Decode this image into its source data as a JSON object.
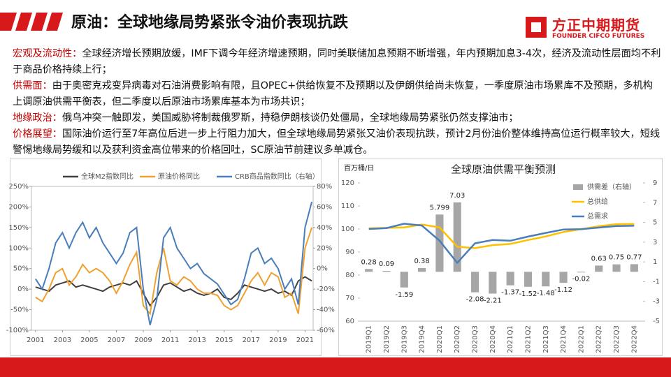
{
  "header": {
    "title": "原油：全球地缘局势紧张令油价表现抗跌",
    "logo_cn": "方正中期期货",
    "logo_en": "FOUNDER CIFCO FUTURES"
  },
  "sections": [
    {
      "label": "宏观及流动性：",
      "text": "全球经济增长预期放缓，IMF下调今年经济增速预期，同时美联储加息预期不断增强，年内预期加息3-4次，经济及流动性层面均不利于商品价格持续上行；"
    },
    {
      "label": "供需面：",
      "text": "由于奥密克戎变异病毒对石油消费影响有限，且OPEC+供给恢复不及预期以及伊朗供给尚未恢复，一季度原油市场累库不及预期，多机构上调原油供需平衡表，但二季度以后原油市场累库基本为市场共识；"
    },
    {
      "label": "地缘政治：",
      "text": "俄乌冲突一触即发，美国威胁将制裁俄罗斯，持稳伊朗核谈仍处僵局，全球地缘局势紧张仍然支撑油市；"
    },
    {
      "label": "价格展望：",
      "text": "国际油价运行至7年高位后进一步上行阻力加大，但全球地缘局势紧张又油价表现抗跌，预计2月份油价整体维持高位运行概率较大，短线警惕地缘局势缓和以及获利资金高位带来的价格回吐，SC原油节前建议多单减仓。"
    }
  ],
  "chart_data": [
    {
      "type": "line",
      "x": [
        2001,
        2001.5,
        2002,
        2002.5,
        2003,
        2003.5,
        2004,
        2004.5,
        2005,
        2005.5,
        2006,
        2006.5,
        2007,
        2007.5,
        2008,
        2008.5,
        2009,
        2009.5,
        2010,
        2010.5,
        2011,
        2011.5,
        2012,
        2012.5,
        2013,
        2013.5,
        2014,
        2014.5,
        2015,
        2015.5,
        2016,
        2016.5,
        2017,
        2017.5,
        2018,
        2018.5,
        2019,
        2019.5,
        2020,
        2020.5,
        2021,
        2021.5
      ],
      "xlim": [
        2000.7,
        2021.6
      ],
      "xticks": [
        2001,
        2003,
        2005,
        2007,
        2009,
        2011,
        2013,
        2015,
        2017,
        2019,
        2021
      ],
      "ylim": [
        -100,
        250
      ],
      "yticks": [
        {
          "value": -100,
          "label": "-100%"
        },
        {
          "value": -50,
          "label": "-50%"
        },
        {
          "value": 0,
          "label": "0%"
        },
        {
          "value": 50,
          "label": "50%"
        },
        {
          "value": 100,
          "label": "100%"
        },
        {
          "value": 150,
          "label": "150%"
        },
        {
          "value": 200,
          "label": "200%"
        },
        {
          "value": 250,
          "label": "250%"
        }
      ],
      "y2lim": [
        -60,
        80
      ],
      "y2ticks": [
        {
          "value": -60,
          "label": "-60%"
        },
        {
          "value": -40,
          "label": "-40%"
        },
        {
          "value": -20,
          "label": "-20%"
        },
        {
          "value": 0,
          "label": "0%"
        },
        {
          "value": 20,
          "label": "20%"
        },
        {
          "value": 40,
          "label": "40%"
        },
        {
          "value": 60,
          "label": "60%"
        },
        {
          "value": 80,
          "label": "80%"
        }
      ],
      "series": [
        {
          "name": "全球M2指数同比",
          "color": "#404040",
          "values": [
            5,
            0,
            -5,
            10,
            15,
            20,
            5,
            10,
            5,
            0,
            -5,
            5,
            10,
            15,
            10,
            20,
            -10,
            -40,
            -20,
            10,
            15,
            5,
            -5,
            0,
            -10,
            -15,
            -10,
            0,
            -20,
            -25,
            -10,
            10,
            5,
            0,
            -5,
            0,
            -10,
            -5,
            -15,
            20,
            30,
            20
          ]
        },
        {
          "name": "原油价格同比",
          "color": "#f0a030",
          "values": [
            -20,
            -30,
            0,
            40,
            50,
            10,
            30,
            60,
            40,
            50,
            40,
            20,
            -10,
            20,
            60,
            90,
            -40,
            -60,
            40,
            100,
            20,
            10,
            30,
            20,
            0,
            -10,
            -10,
            -15,
            -40,
            -50,
            -40,
            -10,
            20,
            40,
            10,
            40,
            30,
            -20,
            -10,
            -60,
            100,
            150
          ]
        },
        {
          "name": "CRB商品指数同比（右轴）",
          "color": "#4a7ebb",
          "axis": "y2",
          "values": [
            -10,
            -20,
            0,
            25,
            35,
            20,
            35,
            45,
            30,
            40,
            25,
            15,
            5,
            15,
            35,
            40,
            -20,
            -55,
            -30,
            30,
            40,
            20,
            10,
            0,
            5,
            -5,
            -10,
            -15,
            -25,
            -35,
            -30,
            -10,
            15,
            20,
            5,
            10,
            0,
            -20,
            -10,
            -35,
            40,
            65
          ]
        }
      ]
    },
    {
      "type": "combo",
      "title": "全球原油供需平衡预测",
      "y_label": "百万桶/日",
      "categories": [
        "2019Q1",
        "2019Q2",
        "2019Q3",
        "2019Q4",
        "2020Q1",
        "2020Q2",
        "2020Q3",
        "2020Q4",
        "2021Q1",
        "2021Q2",
        "2021Q3",
        "2021Q4",
        "2022Q1",
        "2022Q2",
        "2022Q3",
        "2022Q4"
      ],
      "ylim": [
        60,
        120
      ],
      "yticks": [
        60,
        70,
        80,
        90,
        100,
        110,
        120
      ],
      "y2lim": [
        -5,
        9
      ],
      "y2ticks": [
        -5,
        -3,
        -1,
        1,
        3,
        5,
        7,
        9
      ],
      "series": [
        {
          "name": "供需差（右轴）",
          "type": "bar",
          "axis": "y2",
          "color": "#a6a6a6",
          "values": [
            0.28,
            0.09,
            -1.59,
            0.38,
            5.799,
            7.03,
            -2.08,
            -2.21,
            -1.37,
            -1.52,
            -1.48,
            -1.12,
            -0.02,
            0.63,
            0.75,
            0.77
          ]
        },
        {
          "name": "总供给",
          "type": "line",
          "color": "#ffc000",
          "values": [
            100.3,
            100.5,
            100.7,
            101.9,
            100.7,
            92.3,
            91.7,
            93.0,
            93.5,
            95.2,
            96.8,
            98.7,
            99.9,
            101.2,
            102.1,
            102.2
          ]
        },
        {
          "name": "总需求",
          "type": "line",
          "color": "#4a7ebb",
          "values": [
            100.0,
            100.4,
            102.3,
            101.5,
            94.9,
            85.3,
            93.8,
            95.2,
            94.9,
            96.7,
            98.3,
            99.8,
            99.9,
            100.6,
            101.3,
            101.4
          ]
        }
      ]
    }
  ]
}
